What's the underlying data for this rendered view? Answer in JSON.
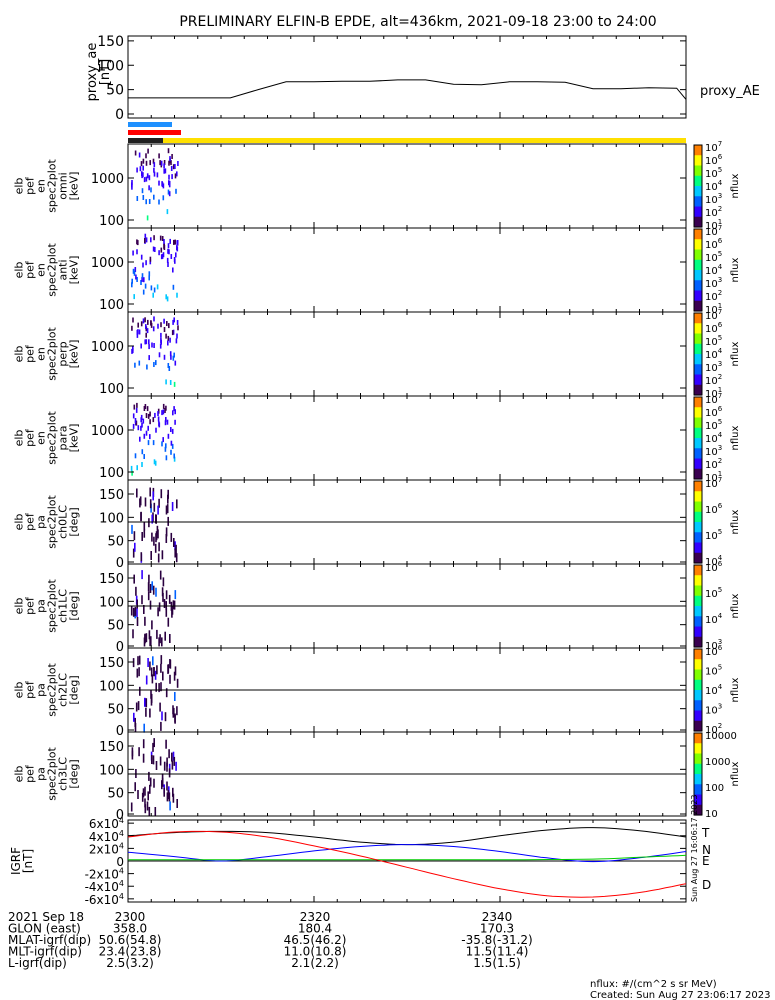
{
  "title": "PRELIMINARY ELFIN-B EPDE, alt=436km, 2021-09-18 23:00 to 24:00",
  "colors": {
    "trace": "#000000",
    "bar_blue": "#1e90ff",
    "bar_red": "#ff0000",
    "bar_dark": "#202020",
    "bar_yellow": "#ffe000",
    "igrf_T": "#000000",
    "igrf_N": "#0000ff",
    "igrf_E": "#00cc00",
    "igrf_D": "#ff0000"
  },
  "chart_data": [
    {
      "type": "line",
      "panel": "proxy_ae",
      "ylabel_lines": [
        "proxy_ae",
        "[nT]"
      ],
      "ylim": [
        0,
        160
      ],
      "yticks": [
        "0",
        "50",
        "100",
        "150"
      ],
      "series": [
        {
          "name": "proxy_AE",
          "x": [
            0,
            2,
            5,
            8,
            11,
            14,
            17,
            20,
            23,
            26,
            29,
            32,
            35,
            38,
            41,
            44,
            47,
            50,
            53,
            56,
            59,
            60
          ],
          "y": [
            33,
            33,
            33,
            33,
            33,
            50,
            66,
            66,
            67,
            67,
            70,
            70,
            61,
            60,
            66,
            66,
            65,
            52,
            52,
            54,
            53,
            30
          ]
        }
      ]
    },
    {
      "type": "heatmap",
      "panel": "omni",
      "ylabel_lines": [
        "elb",
        "pef",
        "en",
        "spec2plot",
        "omni",
        "[keV]"
      ],
      "yticks": [
        "100",
        "1000"
      ],
      "cbar_label": "nflux",
      "cbar_ticks": [
        "10^1",
        "10^2",
        "10^3",
        "10^4",
        "10^5",
        "10^6",
        "10^7"
      ]
    },
    {
      "type": "heatmap",
      "panel": "anti",
      "ylabel_lines": [
        "elb",
        "pef",
        "en",
        "spec2plot",
        "anti",
        "[keV]"
      ],
      "yticks": [
        "100",
        "1000"
      ],
      "cbar_label": "nflux",
      "cbar_ticks": [
        "10^1",
        "10^2",
        "10^3",
        "10^4",
        "10^5",
        "10^6",
        "10^7"
      ]
    },
    {
      "type": "heatmap",
      "panel": "perp",
      "ylabel_lines": [
        "elb",
        "pef",
        "en",
        "spec2plot",
        "perp",
        "[keV]"
      ],
      "yticks": [
        "100",
        "1000"
      ],
      "cbar_label": "nflux",
      "cbar_ticks": [
        "10^1",
        "10^2",
        "10^3",
        "10^4",
        "10^5",
        "10^6",
        "10^7"
      ]
    },
    {
      "type": "heatmap",
      "panel": "para",
      "ylabel_lines": [
        "elb",
        "pef",
        "en",
        "spec2plot",
        "para",
        "[keV]"
      ],
      "yticks": [
        "100",
        "1000"
      ],
      "cbar_label": "nflux",
      "cbar_ticks": [
        "10^1",
        "10^2",
        "10^3",
        "10^4",
        "10^5",
        "10^6",
        "10^7"
      ]
    },
    {
      "type": "heatmap",
      "panel": "ch0LC",
      "ylabel_lines": [
        "elb",
        "pef",
        "pa",
        "spec2plot",
        "ch0LC",
        "[deg]"
      ],
      "ylim": [
        0,
        180
      ],
      "yticks": [
        "0",
        "50",
        "100",
        "150"
      ],
      "cbar_label": "nflux",
      "cbar_ticks": [
        "10^4",
        "10^5",
        "10^6",
        "10^7"
      ]
    },
    {
      "type": "heatmap",
      "panel": "ch1LC",
      "ylabel_lines": [
        "elb",
        "pef",
        "pa",
        "spec2plot",
        "ch1LC",
        "[deg]"
      ],
      "ylim": [
        0,
        180
      ],
      "yticks": [
        "0",
        "50",
        "100",
        "150"
      ],
      "cbar_label": "nflux",
      "cbar_ticks": [
        "10^3",
        "10^4",
        "10^5",
        "10^6"
      ]
    },
    {
      "type": "heatmap",
      "panel": "ch2LC",
      "ylabel_lines": [
        "elb",
        "pef",
        "pa",
        "spec2plot",
        "ch2LC",
        "[deg]"
      ],
      "ylim": [
        0,
        180
      ],
      "yticks": [
        "0",
        "50",
        "100",
        "150"
      ],
      "cbar_label": "nflux",
      "cbar_ticks": [
        "10^2",
        "10^3",
        "10^4",
        "10^5",
        "10^6"
      ]
    },
    {
      "type": "heatmap",
      "panel": "ch3LC",
      "ylabel_lines": [
        "elb",
        "pef",
        "pa",
        "spec2plot",
        "ch3LC",
        "[deg]"
      ],
      "ylim": [
        0,
        180
      ],
      "yticks": [
        "0",
        "50",
        "100",
        "150"
      ],
      "cbar_label": "nflux",
      "cbar_ticks": [
        "10",
        "100",
        "1000",
        "10000"
      ]
    },
    {
      "type": "line",
      "panel": "igrf",
      "ylabel_lines": [
        "IGRF",
        "[nT]"
      ],
      "ylim": [
        -65000,
        65000
      ],
      "yticks": [
        "-6x10^4",
        "-4x10^4",
        "-2x10^4",
        "0",
        "2x10^4",
        "4x10^4",
        "6x10^4"
      ],
      "series": [
        {
          "name": "T",
          "x": [
            0,
            5,
            10,
            15,
            20,
            25,
            30,
            35,
            40,
            45,
            50,
            55,
            60
          ],
          "y": [
            40000,
            45000,
            47000,
            45000,
            38000,
            30000,
            26000,
            30000,
            40000,
            49000,
            53000,
            48000,
            38000
          ]
        },
        {
          "name": "N",
          "x": [
            0,
            5,
            10,
            15,
            20,
            25,
            30,
            35,
            40,
            45,
            50,
            55,
            60
          ],
          "y": [
            14000,
            7000,
            0,
            7000,
            16000,
            23000,
            26000,
            23000,
            15000,
            5000,
            -1000,
            5000,
            15000
          ]
        },
        {
          "name": "E",
          "x": [
            0,
            10,
            20,
            30,
            40,
            50,
            55,
            60
          ],
          "y": [
            2000,
            2000,
            2000,
            2000,
            2000,
            3000,
            6000,
            9000
          ]
        },
        {
          "name": "D",
          "x": [
            0,
            5,
            10,
            15,
            20,
            25,
            30,
            35,
            40,
            45,
            50,
            55,
            60
          ],
          "y": [
            38000,
            46000,
            46000,
            38000,
            24000,
            8000,
            -10000,
            -28000,
            -44000,
            -55000,
            -57000,
            -50000,
            -36000
          ]
        }
      ]
    }
  ],
  "xaxis_rows": [
    {
      "label": "2021 Sep 18",
      "values": [
        "2300",
        "2320",
        "2340"
      ]
    },
    {
      "label": "GLON (east)",
      "values": [
        "358.0",
        "180.4",
        "170.3"
      ]
    },
    {
      "label": "MLAT-igrf(dip)",
      "values": [
        "50.6(54.8)",
        "46.5(46.2)",
        "-35.8(-31.2)"
      ]
    },
    {
      "label": "MLT-igrf(dip)",
      "values": [
        "23.4(23.8)",
        "11.0(10.8)",
        "11.5(11.4)"
      ]
    },
    {
      "label": "L-igrf(dip)",
      "values": [
        "2.5(3.2)",
        "2.1(2.2)",
        "1.5(1.5)"
      ]
    }
  ],
  "footer": {
    "units": "nflux: #/(cm^2 s sr MeV)",
    "created": "Created: Sun Aug 27 23:06:17 2023",
    "vertical_stamp": "Sun Aug 27 16:06:17 2023"
  }
}
